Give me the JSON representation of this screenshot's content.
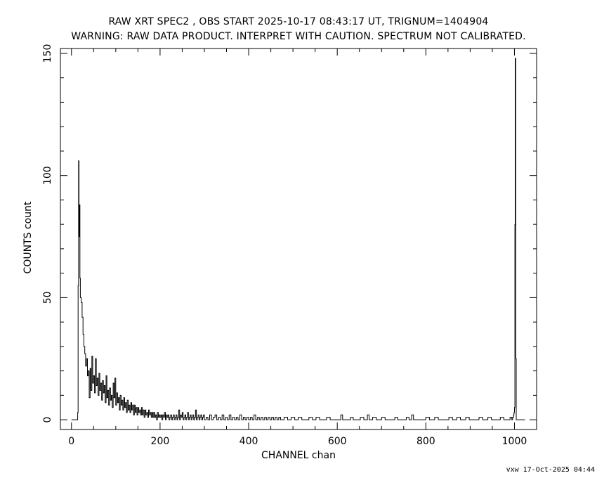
{
  "header": {
    "title": "RAW XRT SPEC2 , OBS START 2025-10-17 08:43:17 UT, TRIGNUM=1404904",
    "subtitle": "WARNING: RAW DATA PRODUCT. INTERPRET WITH CAUTION. SPECTRUM NOT CALIBRATED."
  },
  "footer": {
    "stamp": "vxw 17-Oct-2025 04:44"
  },
  "chart_data": {
    "type": "line",
    "xlabel": "CHANNEL  chan",
    "ylabel": "COUNTS  count",
    "xlim": [
      -25,
      1050
    ],
    "ylim": [
      -4,
      152
    ],
    "xticks": [
      0,
      200,
      400,
      600,
      800,
      1000
    ],
    "yticks": [
      0,
      50,
      100,
      150
    ],
    "grid": false,
    "series_color": "#000000",
    "points": [
      [
        0,
        0
      ],
      [
        13,
        0
      ],
      [
        14,
        3
      ],
      [
        15,
        55
      ],
      [
        16,
        106
      ],
      [
        17,
        75
      ],
      [
        18,
        88
      ],
      [
        19,
        58
      ],
      [
        20,
        50
      ],
      [
        22,
        48
      ],
      [
        24,
        42
      ],
      [
        26,
        35
      ],
      [
        28,
        30
      ],
      [
        30,
        27
      ],
      [
        32,
        22
      ],
      [
        34,
        25
      ],
      [
        36,
        18
      ],
      [
        38,
        20
      ],
      [
        40,
        9
      ],
      [
        42,
        21
      ],
      [
        44,
        12
      ],
      [
        46,
        26
      ],
      [
        48,
        15
      ],
      [
        50,
        18
      ],
      [
        52,
        11
      ],
      [
        54,
        25
      ],
      [
        56,
        14
      ],
      [
        58,
        17
      ],
      [
        60,
        10
      ],
      [
        62,
        19
      ],
      [
        64,
        12
      ],
      [
        66,
        15
      ],
      [
        68,
        8
      ],
      [
        70,
        16
      ],
      [
        72,
        11
      ],
      [
        74,
        14
      ],
      [
        76,
        7
      ],
      [
        78,
        18
      ],
      [
        80,
        9
      ],
      [
        82,
        12
      ],
      [
        84,
        6
      ],
      [
        86,
        13
      ],
      [
        88,
        8
      ],
      [
        90,
        10
      ],
      [
        92,
        5
      ],
      [
        94,
        15
      ],
      [
        96,
        9
      ],
      [
        98,
        17
      ],
      [
        100,
        6
      ],
      [
        102,
        11
      ],
      [
        104,
        7
      ],
      [
        106,
        9
      ],
      [
        108,
        4
      ],
      [
        110,
        10
      ],
      [
        112,
        6
      ],
      [
        114,
        8
      ],
      [
        116,
        4
      ],
      [
        118,
        9
      ],
      [
        120,
        5
      ],
      [
        122,
        7
      ],
      [
        124,
        3
      ],
      [
        126,
        8
      ],
      [
        128,
        4
      ],
      [
        130,
        6
      ],
      [
        132,
        3
      ],
      [
        134,
        7
      ],
      [
        136,
        4
      ],
      [
        138,
        6
      ],
      [
        140,
        2
      ],
      [
        142,
        6
      ],
      [
        144,
        3
      ],
      [
        146,
        5
      ],
      [
        148,
        2
      ],
      [
        150,
        5
      ],
      [
        152,
        3
      ],
      [
        154,
        4
      ],
      [
        156,
        2
      ],
      [
        158,
        5
      ],
      [
        160,
        2
      ],
      [
        162,
        4
      ],
      [
        164,
        1
      ],
      [
        166,
        4
      ],
      [
        168,
        2
      ],
      [
        170,
        3
      ],
      [
        172,
        1
      ],
      [
        174,
        4
      ],
      [
        176,
        2
      ],
      [
        178,
        3
      ],
      [
        180,
        1
      ],
      [
        182,
        3
      ],
      [
        184,
        1
      ],
      [
        186,
        3
      ],
      [
        188,
        1
      ],
      [
        190,
        2
      ],
      [
        192,
        0
      ],
      [
        194,
        3
      ],
      [
        196,
        1
      ],
      [
        198,
        2
      ],
      [
        200,
        1
      ],
      [
        202,
        2
      ],
      [
        204,
        0
      ],
      [
        206,
        2
      ],
      [
        208,
        1
      ],
      [
        210,
        3
      ],
      [
        212,
        0
      ],
      [
        214,
        2
      ],
      [
        216,
        1
      ],
      [
        218,
        2
      ],
      [
        220,
        0
      ],
      [
        222,
        1
      ],
      [
        224,
        2
      ],
      [
        226,
        0
      ],
      [
        228,
        1
      ],
      [
        230,
        2
      ],
      [
        232,
        0
      ],
      [
        234,
        1
      ],
      [
        236,
        2
      ],
      [
        238,
        0
      ],
      [
        240,
        1
      ],
      [
        242,
        4
      ],
      [
        244,
        0
      ],
      [
        246,
        2
      ],
      [
        248,
        1
      ],
      [
        250,
        3
      ],
      [
        252,
        0
      ],
      [
        254,
        1
      ],
      [
        256,
        2
      ],
      [
        258,
        0
      ],
      [
        260,
        1
      ],
      [
        262,
        3
      ],
      [
        264,
        0
      ],
      [
        266,
        1
      ],
      [
        268,
        2
      ],
      [
        270,
        0
      ],
      [
        272,
        1
      ],
      [
        274,
        2
      ],
      [
        276,
        0
      ],
      [
        278,
        1
      ],
      [
        280,
        4
      ],
      [
        282,
        0
      ],
      [
        284,
        1
      ],
      [
        286,
        2
      ],
      [
        288,
        0
      ],
      [
        290,
        1
      ],
      [
        292,
        2
      ],
      [
        294,
        0
      ],
      [
        296,
        1
      ],
      [
        298,
        2
      ],
      [
        300,
        0
      ],
      [
        304,
        1
      ],
      [
        308,
        0
      ],
      [
        312,
        2
      ],
      [
        316,
        0
      ],
      [
        320,
        1
      ],
      [
        324,
        2
      ],
      [
        328,
        0
      ],
      [
        332,
        1
      ],
      [
        336,
        0
      ],
      [
        340,
        2
      ],
      [
        344,
        0
      ],
      [
        348,
        1
      ],
      [
        352,
        0
      ],
      [
        356,
        2
      ],
      [
        360,
        0
      ],
      [
        364,
        1
      ],
      [
        368,
        0
      ],
      [
        372,
        1
      ],
      [
        376,
        0
      ],
      [
        380,
        2
      ],
      [
        384,
        0
      ],
      [
        388,
        1
      ],
      [
        392,
        0
      ],
      [
        396,
        1
      ],
      [
        400,
        0
      ],
      [
        404,
        1
      ],
      [
        408,
        0
      ],
      [
        412,
        2
      ],
      [
        416,
        0
      ],
      [
        420,
        1
      ],
      [
        424,
        0
      ],
      [
        428,
        1
      ],
      [
        432,
        0
      ],
      [
        436,
        1
      ],
      [
        440,
        0
      ],
      [
        444,
        1
      ],
      [
        448,
        0
      ],
      [
        452,
        1
      ],
      [
        456,
        0
      ],
      [
        460,
        1
      ],
      [
        464,
        0
      ],
      [
        468,
        1
      ],
      [
        472,
        0
      ],
      [
        480,
        1
      ],
      [
        488,
        0
      ],
      [
        496,
        1
      ],
      [
        504,
        0
      ],
      [
        512,
        1
      ],
      [
        520,
        0
      ],
      [
        528,
        0
      ],
      [
        536,
        1
      ],
      [
        544,
        0
      ],
      [
        552,
        1
      ],
      [
        560,
        0
      ],
      [
        568,
        0
      ],
      [
        576,
        1
      ],
      [
        584,
        0
      ],
      [
        592,
        0
      ],
      [
        600,
        0
      ],
      [
        608,
        2
      ],
      [
        612,
        0
      ],
      [
        620,
        0
      ],
      [
        630,
        1
      ],
      [
        636,
        0
      ],
      [
        644,
        0
      ],
      [
        652,
        1
      ],
      [
        660,
        0
      ],
      [
        668,
        2
      ],
      [
        672,
        0
      ],
      [
        680,
        1
      ],
      [
        688,
        0
      ],
      [
        700,
        1
      ],
      [
        708,
        0
      ],
      [
        720,
        0
      ],
      [
        730,
        1
      ],
      [
        736,
        0
      ],
      [
        748,
        0
      ],
      [
        756,
        1
      ],
      [
        762,
        0
      ],
      [
        768,
        2
      ],
      [
        772,
        0
      ],
      [
        790,
        0
      ],
      [
        800,
        1
      ],
      [
        808,
        0
      ],
      [
        820,
        1
      ],
      [
        828,
        0
      ],
      [
        840,
        0
      ],
      [
        852,
        1
      ],
      [
        860,
        0
      ],
      [
        870,
        1
      ],
      [
        878,
        0
      ],
      [
        890,
        1
      ],
      [
        898,
        0
      ],
      [
        910,
        0
      ],
      [
        920,
        1
      ],
      [
        928,
        0
      ],
      [
        940,
        1
      ],
      [
        948,
        0
      ],
      [
        960,
        0
      ],
      [
        968,
        1
      ],
      [
        976,
        0
      ],
      [
        984,
        0
      ],
      [
        990,
        1
      ],
      [
        994,
        0
      ],
      [
        996,
        1
      ],
      [
        998,
        2
      ],
      [
        999,
        3
      ],
      [
        1000,
        5
      ],
      [
        1001,
        80
      ],
      [
        1002,
        148
      ],
      [
        1003,
        25
      ],
      [
        1004,
        0
      ],
      [
        1024,
        0
      ]
    ]
  }
}
